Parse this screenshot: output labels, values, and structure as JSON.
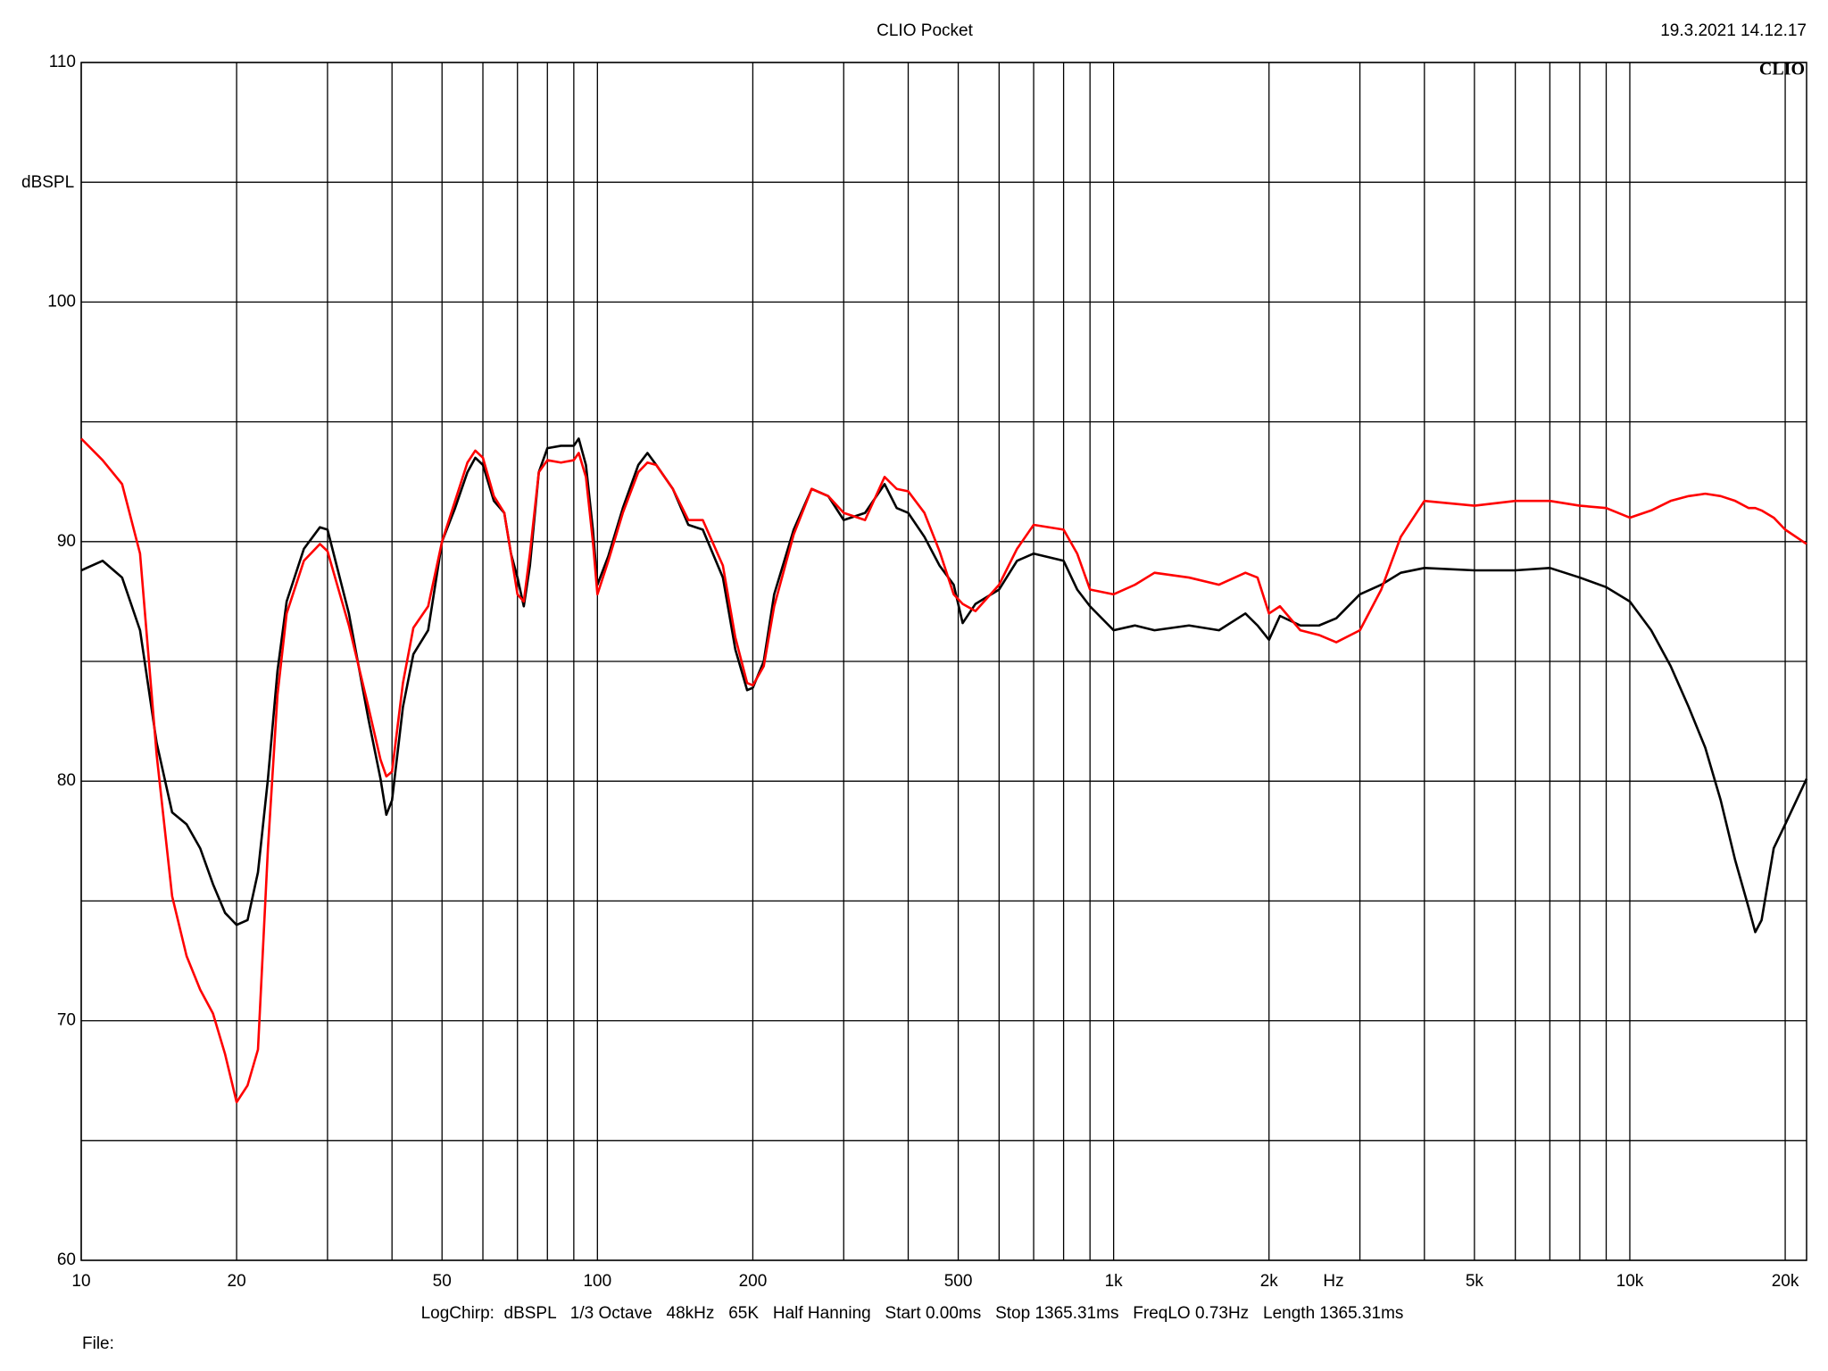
{
  "chart_data": {
    "type": "line",
    "title": "CLIO Pocket",
    "timestamp": "19.3.2021 14.12.17",
    "logo": "CLIO",
    "y_label": "dBSPL",
    "x_label": "Hz",
    "footer": "LogChirp:  dBSPL   1/3 Octave   48kHz   65K   Half Hanning   Start 0.00ms   Stop 1365.31ms   FreqLO 0.73Hz   Length 1365.31ms",
    "file_label": "File:",
    "x_scale": "log",
    "xlim": [
      10,
      22000
    ],
    "ylim": [
      60,
      110
    ],
    "xticks": [
      10,
      20,
      50,
      100,
      200,
      500,
      {
        "value": 1000,
        "label": "1k"
      },
      {
        "value": 2000,
        "label": "2k"
      },
      {
        "value": 5000,
        "label": "5k"
      },
      {
        "value": 10000,
        "label": "10k"
      },
      {
        "value": 20000,
        "label": "20k"
      }
    ],
    "x_minor_grid": [
      30,
      40,
      60,
      70,
      80,
      90,
      300,
      400,
      600,
      700,
      800,
      900,
      3000,
      4000,
      6000,
      7000,
      8000,
      9000
    ],
    "yticks": [
      60,
      70,
      80,
      90,
      100,
      110
    ],
    "y_minor_grid": [
      65,
      75,
      85,
      95,
      105
    ],
    "grid": true,
    "x": [
      10,
      11,
      12,
      13,
      14,
      15,
      16,
      17,
      18,
      19,
      20,
      21,
      22,
      23,
      24,
      25,
      27,
      29,
      30,
      33,
      36,
      38,
      39,
      40,
      42,
      44,
      47,
      50,
      53,
      56,
      58,
      60,
      63,
      66,
      68,
      70,
      72,
      74,
      77,
      80,
      85,
      90,
      92,
      95,
      98,
      100,
      105,
      112,
      120,
      125,
      130,
      140,
      150,
      160,
      175,
      185,
      195,
      200,
      210,
      220,
      240,
      260,
      280,
      300,
      330,
      360,
      380,
      400,
      430,
      460,
      490,
      510,
      540,
      600,
      650,
      700,
      800,
      850,
      900,
      1000,
      1100,
      1200,
      1400,
      1600,
      1800,
      1900,
      2000,
      2100,
      2300,
      2500,
      2700,
      3000,
      3300,
      3600,
      4000,
      5000,
      6000,
      7000,
      8000,
      9000,
      10000,
      11000,
      12000,
      13000,
      14000,
      15000,
      16000,
      17000,
      17500,
      18000,
      19000,
      20000,
      22000
    ],
    "series": [
      {
        "color": "#000000",
        "values": [
          88.8,
          89.2,
          88.5,
          86.3,
          81.6,
          78.7,
          78.2,
          77.2,
          75.7,
          74.5,
          74.0,
          74.2,
          76.2,
          80.1,
          84.6,
          87.5,
          89.7,
          90.6,
          90.5,
          87.0,
          82.6,
          80.1,
          78.6,
          79.2,
          83.1,
          85.3,
          86.3,
          90.0,
          91.4,
          92.9,
          93.5,
          93.2,
          91.7,
          91.2,
          89.5,
          88.5,
          87.3,
          89.0,
          92.9,
          93.9,
          94.0,
          94.0,
          94.3,
          93.2,
          90.5,
          88.2,
          89.4,
          91.4,
          93.2,
          93.7,
          93.2,
          92.2,
          90.7,
          90.5,
          88.5,
          85.5,
          83.8,
          83.9,
          85.0,
          87.8,
          90.5,
          92.2,
          91.9,
          90.9,
          91.2,
          92.4,
          91.4,
          91.2,
          90.2,
          89.0,
          88.2,
          86.6,
          87.4,
          88.0,
          89.2,
          89.5,
          89.2,
          88.0,
          87.3,
          86.3,
          86.5,
          86.3,
          86.5,
          86.3,
          87.0,
          86.5,
          85.9,
          86.9,
          86.5,
          86.5,
          86.8,
          87.8,
          88.2,
          88.7,
          88.9,
          88.8,
          88.8,
          88.9,
          88.5,
          88.1,
          87.5,
          86.3,
          84.8,
          83.1,
          81.4,
          79.2,
          76.7,
          74.7,
          73.7,
          74.2,
          77.2,
          78.2,
          80.1
        ]
      },
      {
        "color": "#ff0000",
        "values": [
          94.3,
          93.4,
          92.4,
          89.5,
          81.1,
          75.2,
          72.7,
          71.3,
          70.3,
          68.6,
          66.6,
          67.3,
          68.8,
          77.2,
          83.6,
          87.0,
          89.2,
          89.9,
          89.6,
          86.5,
          83.1,
          80.9,
          80.2,
          80.4,
          84.1,
          86.4,
          87.3,
          90.0,
          91.7,
          93.3,
          93.8,
          93.5,
          91.9,
          91.2,
          89.5,
          87.8,
          87.5,
          89.5,
          92.9,
          93.4,
          93.3,
          93.4,
          93.7,
          92.7,
          90.0,
          87.8,
          89.2,
          91.2,
          92.9,
          93.3,
          93.2,
          92.2,
          90.9,
          90.9,
          89.0,
          86.0,
          84.1,
          84.0,
          84.8,
          87.3,
          90.3,
          92.2,
          91.9,
          91.2,
          90.9,
          92.7,
          92.2,
          92.1,
          91.2,
          89.6,
          87.8,
          87.4,
          87.1,
          88.2,
          89.7,
          90.7,
          90.5,
          89.5,
          88.0,
          87.8,
          88.2,
          88.7,
          88.5,
          88.2,
          88.7,
          88.5,
          87.0,
          87.3,
          86.3,
          86.1,
          85.8,
          86.3,
          88.0,
          90.2,
          91.7,
          91.5,
          91.7,
          91.7,
          91.5,
          91.4,
          91.0,
          91.3,
          91.7,
          91.9,
          92.0,
          91.9,
          91.7,
          91.4,
          91.4,
          91.3,
          91.0,
          90.5,
          89.9
        ]
      }
    ]
  }
}
